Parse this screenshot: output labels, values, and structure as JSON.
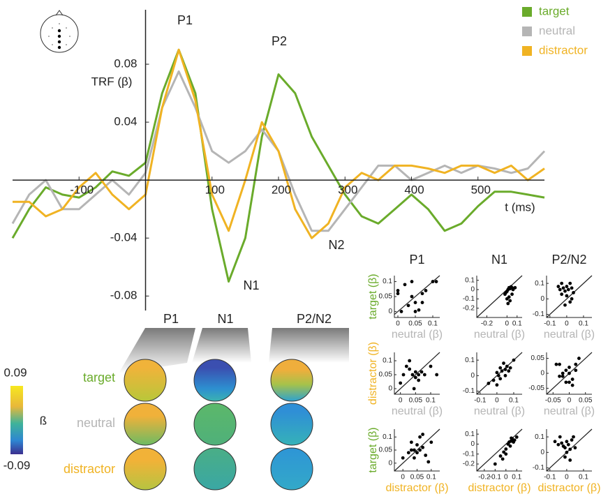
{
  "chart_data": [
    {
      "type": "line",
      "ylabel": "TRF (β)",
      "xlabel": "t (ms)",
      "annotations": [
        "P1",
        "P2",
        "N1",
        "N2"
      ],
      "x": [
        -200,
        -175,
        -150,
        -125,
        -100,
        -75,
        -50,
        -25,
        0,
        25,
        50,
        75,
        100,
        125,
        150,
        175,
        200,
        225,
        250,
        275,
        300,
        325,
        350,
        375,
        400,
        425,
        450,
        475,
        500,
        525,
        550,
        575,
        600
      ],
      "xlim": [
        -200,
        600
      ],
      "ylim": [
        -0.09,
        0.12
      ],
      "xticks": [
        -100,
        100,
        200,
        300,
        400,
        500
      ],
      "yticks": [
        -0.08,
        -0.04,
        0.04,
        0.08
      ],
      "legend": "top-right",
      "series": [
        {
          "name": "target",
          "color": "#6aab2b",
          "values": [
            -0.04,
            -0.02,
            -0.005,
            -0.01,
            -0.012,
            -0.005,
            0.006,
            0.003,
            0.012,
            0.06,
            0.09,
            0.06,
            -0.02,
            -0.07,
            -0.04,
            0.03,
            0.073,
            0.06,
            0.03,
            0.01,
            -0.01,
            -0.025,
            -0.03,
            -0.02,
            -0.01,
            -0.02,
            -0.035,
            -0.03,
            -0.018,
            -0.008,
            -0.008,
            -0.01,
            -0.012
          ]
        },
        {
          "name": "neutral",
          "color": "#b5b5b5",
          "values": [
            -0.03,
            -0.01,
            0,
            -0.02,
            -0.02,
            -0.01,
            0,
            -0.01,
            0.005,
            0.05,
            0.075,
            0.05,
            0.02,
            0.012,
            0.02,
            0.035,
            0.02,
            -0.01,
            -0.035,
            -0.035,
            -0.02,
            -0.005,
            0.01,
            0.01,
            0,
            0.005,
            0.01,
            0.005,
            0.01,
            0.008,
            0.005,
            0.008,
            0.02
          ]
        },
        {
          "name": "distractor",
          "color": "#f0b323",
          "values": [
            -0.015,
            -0.015,
            -0.025,
            -0.02,
            -0.005,
            0.005,
            -0.01,
            -0.02,
            -0.01,
            0.05,
            0.09,
            0.055,
            -0.01,
            -0.035,
            0,
            0.04,
            0.02,
            -0.02,
            -0.04,
            -0.03,
            -0.005,
            0.005,
            0,
            0.01,
            0.01,
            0.008,
            0.005,
            0.01,
            0.01,
            0.005,
            0.01,
            0,
            0.008
          ]
        }
      ]
    },
    {
      "type": "scatter",
      "title": "P1",
      "ylabel": "target (β)",
      "ylabel_color": "#6aab2b",
      "xlabel": "neutral (β)",
      "xlabel_color": "#b5b5b5",
      "xlim": [
        -0.01,
        0.12
      ],
      "ylim": [
        -0.02,
        0.12
      ],
      "xticks": [
        0,
        0.05,
        0.1
      ],
      "yticks": [
        0,
        0.05,
        0.1
      ],
      "x": [
        0,
        0.01,
        0,
        0.02,
        0.03,
        0.04,
        0.04,
        0.05,
        0.06,
        0.05,
        0.07,
        0.08,
        0.1,
        0.11,
        0.07
      ],
      "y": [
        0.06,
        0,
        0.07,
        0.09,
        0.02,
        0.1,
        0.05,
        0.03,
        0.005,
        0,
        0.06,
        0.07,
        0.1,
        0.1,
        0.03
      ]
    },
    {
      "type": "scatter",
      "title": "N1",
      "xlabel": "neutral (β)",
      "xlabel_color": "#b5b5b5",
      "xlim": [
        -0.3,
        0.15
      ],
      "ylim": [
        -0.3,
        0.15
      ],
      "xticks": [
        -0.2,
        0,
        0.1
      ],
      "yticks": [
        -0.2,
        -0.1,
        0,
        0.1
      ],
      "x": [
        -0.02,
        0,
        0.01,
        0.02,
        0.03,
        0.04,
        0.05,
        0.06,
        0.08,
        0,
        0.02,
        0.03,
        0.01,
        -0.01,
        0.05
      ],
      "y": [
        -0.05,
        -0.02,
        0,
        0.02,
        0.01,
        0.03,
        0.02,
        0,
        0.02,
        -0.1,
        -0.08,
        -0.12,
        -0.15,
        -0.03,
        -0.05
      ]
    },
    {
      "type": "scatter",
      "title": "P2/N2",
      "xlabel": "neutral (β)",
      "xlabel_color": "#b5b5b5",
      "xlim": [
        -0.12,
        0.15
      ],
      "ylim": [
        -0.12,
        0.15
      ],
      "xticks": [
        -0.1,
        0,
        0.1
      ],
      "yticks": [
        -0.1,
        0,
        0.1
      ],
      "x": [
        -0.05,
        -0.04,
        -0.03,
        -0.02,
        -0.01,
        0,
        0.01,
        0.02,
        0.03,
        -0.03,
        0,
        0.02,
        -0.01,
        0.03,
        0.04
      ],
      "y": [
        0.08,
        0.06,
        0.1,
        0.07,
        0.05,
        0.08,
        0.06,
        0.1,
        0.07,
        0.03,
        0.02,
        -0.02,
        -0.04,
        0,
        0.04
      ]
    },
    {
      "type": "scatter",
      "ylabel": "distractor (β)",
      "ylabel_color": "#f0b323",
      "xlabel": "neutral (β)",
      "xlabel_color": "#b5b5b5",
      "xlim": [
        -0.02,
        0.13
      ],
      "ylim": [
        -0.02,
        0.13
      ],
      "xticks": [
        0,
        0.05,
        0.1
      ],
      "yticks": [
        0,
        0.05,
        0.1
      ],
      "x": [
        0,
        0.01,
        0.02,
        0.03,
        0.04,
        0.05,
        0.05,
        0.06,
        0.07,
        0.08,
        0.1,
        0.12,
        0.03,
        0.06,
        0.045
      ],
      "y": [
        0.02,
        0.05,
        0.08,
        0.07,
        0.05,
        0.04,
        0.06,
        0.05,
        0.06,
        0.05,
        0.08,
        0.05,
        0.1,
        0.03,
        0
      ]
    },
    {
      "type": "scatter",
      "xlabel": "neutral (β)",
      "xlabel_color": "#b5b5b5",
      "xlim": [
        -0.12,
        0.15
      ],
      "ylim": [
        -0.12,
        0.15
      ],
      "xticks": [
        -0.1,
        0,
        0.1
      ],
      "yticks": [
        -0.1,
        0,
        0.1
      ],
      "x": [
        -0.05,
        -0.02,
        0,
        0.01,
        0.02,
        0.03,
        0.04,
        0.05,
        0.06,
        0.08,
        0.1,
        0.02,
        0,
        0.05,
        0.07
      ],
      "y": [
        -0.05,
        -0.03,
        0.02,
        0,
        0.05,
        0.03,
        0.08,
        0.04,
        0.06,
        0.05,
        0.1,
        -0.02,
        -0.06,
        0,
        0.03
      ]
    },
    {
      "type": "scatter",
      "xlabel": "neutral (β)",
      "xlabel_color": "#b5b5b5",
      "xlim": [
        -0.07,
        0.07
      ],
      "ylim": [
        -0.07,
        0.07
      ],
      "xticks": [
        -0.05,
        0,
        0.05
      ],
      "yticks": [
        -0.05,
        0,
        0.05
      ],
      "x": [
        -0.04,
        -0.03,
        -0.02,
        -0.02,
        -0.01,
        0,
        0,
        0.01,
        0.01,
        0.02,
        0.03,
        -0.03,
        0,
        -0.01,
        0.02
      ],
      "y": [
        0.03,
        0.03,
        -0.01,
        0,
        0.01,
        0.02,
        -0.03,
        -0.02,
        -0.04,
        0.03,
        0.05,
        -0.01,
        0,
        -0.03,
        0.01
      ]
    },
    {
      "type": "scatter",
      "ylabel": "target (β)",
      "ylabel_color": "#6aab2b",
      "xlabel": "distractor (β)",
      "xlabel_color": "#f0b323",
      "xlim": [
        -0.03,
        0.13
      ],
      "ylim": [
        -0.03,
        0.13
      ],
      "xticks": [
        0,
        0.05,
        0.1
      ],
      "yticks": [
        0,
        0.05,
        0.1
      ],
      "x": [
        0,
        0.02,
        0.03,
        0.04,
        0.05,
        0.05,
        0.06,
        0.06,
        0.07,
        0.08,
        0.1,
        0.04,
        0.09,
        0.03,
        0.07
      ],
      "y": [
        0.02,
        0.04,
        0.05,
        0.05,
        0.07,
        0.04,
        0.1,
        0.05,
        0.06,
        0.03,
        0.08,
        0.02,
        0.005,
        0.08,
        0.11
      ]
    },
    {
      "type": "scatter",
      "xlabel": "distractor (β)",
      "xlabel_color": "#f0b323",
      "xlim": [
        -0.27,
        0.15
      ],
      "ylim": [
        -0.27,
        0.15
      ],
      "xticks": [
        -0.2,
        -0.1,
        0,
        0.1
      ],
      "yticks": [
        -0.2,
        -0.1,
        0,
        0.1
      ],
      "x": [
        -0.1,
        -0.05,
        -0.02,
        0,
        0.02,
        0.03,
        0.05,
        0.06,
        0.08,
        0.1,
        0.04,
        0,
        -0.03,
        0.05,
        0.07
      ],
      "y": [
        -0.2,
        -0.12,
        -0.08,
        -0.05,
        0,
        0.02,
        0.03,
        0.05,
        0.04,
        0.07,
        -0.02,
        -0.1,
        -0.15,
        0.06,
        0.02
      ]
    },
    {
      "type": "scatter",
      "xlabel": "distractor (β)",
      "xlabel_color": "#f0b323",
      "xlim": [
        -0.12,
        0.15
      ],
      "ylim": [
        -0.12,
        0.15
      ],
      "xticks": [
        -0.1,
        0,
        0.1
      ],
      "yticks": [
        -0.1,
        0,
        0.1
      ],
      "x": [
        -0.07,
        -0.05,
        -0.04,
        -0.03,
        -0.02,
        -0.01,
        0,
        0.01,
        0.02,
        0.03,
        0.04,
        -0.01,
        0.02,
        0,
        0.05
      ],
      "y": [
        0.07,
        0.05,
        0.1,
        0.06,
        0.04,
        0.03,
        0.07,
        0.05,
        0.02,
        0.08,
        0.1,
        -0.03,
        -0.05,
        0,
        0.03
      ]
    }
  ],
  "topomaps": {
    "columns": [
      "P1",
      "N1",
      "P2/N2"
    ],
    "rows": [
      "target",
      "neutral",
      "distractor"
    ],
    "row_colors": [
      "#6aab2b",
      "#b5b5b5",
      "#f0b323"
    ],
    "colorbar": {
      "label": "ß",
      "max": 0.09,
      "min": -0.09
    }
  }
}
